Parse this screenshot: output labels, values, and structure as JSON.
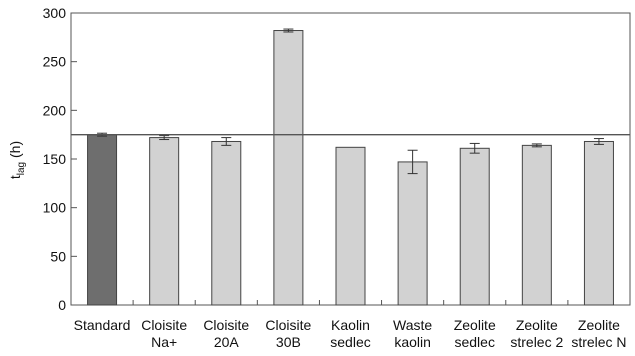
{
  "chart_data": {
    "type": "bar",
    "categories": [
      [
        "Standard"
      ],
      [
        "Cloisite",
        "Na+"
      ],
      [
        "Cloisite",
        "20A"
      ],
      [
        "Cloisite",
        "30B"
      ],
      [
        "Kaolin",
        "sedlec"
      ],
      [
        "Waste",
        "kaolin"
      ],
      [
        "Zeolite",
        "sedlec"
      ],
      [
        "Zeolite",
        "strelec 2"
      ],
      [
        "Zeolite",
        "strelec N"
      ]
    ],
    "values": [
      175,
      172,
      168,
      282,
      162,
      147,
      161,
      164,
      168
    ],
    "errors": [
      1.5,
      2,
      4,
      1.5,
      0,
      12,
      5,
      1.5,
      3
    ],
    "bar_colors": [
      "#6e6e6e",
      "#d2d2d2",
      "#d2d2d2",
      "#d2d2d2",
      "#d2d2d2",
      "#d2d2d2",
      "#d2d2d2",
      "#d2d2d2",
      "#d2d2d2"
    ],
    "reference_line": 175,
    "ylim": [
      0,
      300
    ],
    "yticks": [
      0,
      50,
      100,
      150,
      200,
      250,
      300
    ],
    "ylabel": "t",
    "ylabel_sub": "lag",
    "ylabel_unit": " (h)",
    "xlabel": "",
    "title": "",
    "grid": false,
    "legend": "none"
  }
}
